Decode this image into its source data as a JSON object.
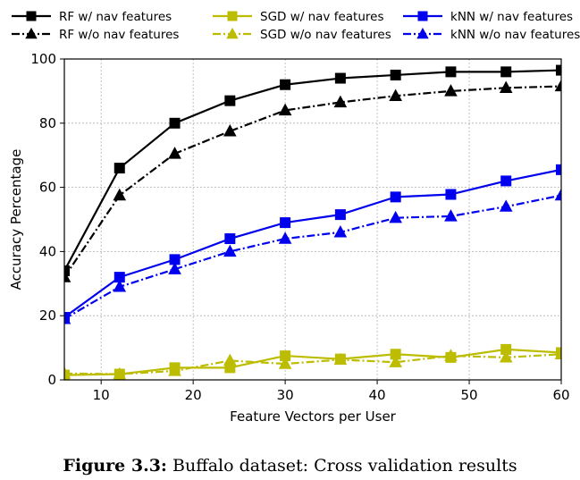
{
  "chart_data": {
    "type": "line",
    "xlabel": "Feature Vectors per User",
    "ylabel": "Accuracy Percentage",
    "xlim": [
      6,
      60
    ],
    "ylim": [
      0,
      100
    ],
    "xticks": [
      10,
      20,
      30,
      40,
      50,
      60
    ],
    "yticks": [
      0,
      20,
      40,
      60,
      80,
      100
    ],
    "grid": true,
    "legend_position": "top",
    "x": [
      6,
      12,
      18,
      24,
      30,
      36,
      42,
      48,
      54,
      60
    ],
    "series": [
      {
        "name": "RF w/ nav features",
        "color": "#000000",
        "marker": "square",
        "linestyle": "solid",
        "values": [
          34,
          66,
          80,
          87,
          92,
          94,
          95,
          96,
          96,
          96.5
        ]
      },
      {
        "name": "RF w/o nav features",
        "color": "#000000",
        "marker": "triangle",
        "linestyle": "dashdot",
        "values": [
          32,
          57.5,
          70.5,
          77.5,
          84,
          86.5,
          88.5,
          90,
          91,
          91.5
        ]
      },
      {
        "name": "SGD w/ nav features",
        "color": "#bcbc00",
        "marker": "square",
        "linestyle": "solid",
        "values": [
          1.5,
          1.8,
          3.8,
          3.8,
          7.5,
          6.5,
          8,
          7,
          9.5,
          8.5
        ]
      },
      {
        "name": "SGD w/o nav features",
        "color": "#bcbc00",
        "marker": "triangle",
        "linestyle": "dashdot",
        "values": [
          2,
          1.8,
          2.8,
          6,
          5,
          6.3,
          5.5,
          7.5,
          7,
          8
        ]
      },
      {
        "name": "kNN w/ nav features",
        "color": "#0000ee",
        "marker": "square",
        "linestyle": "solid",
        "values": [
          19.5,
          32,
          37.5,
          44,
          49,
          51.5,
          57,
          57.8,
          62,
          65.5
        ]
      },
      {
        "name": "kNN w/o nav features",
        "color": "#0000ee",
        "marker": "triangle",
        "linestyle": "dashdot",
        "values": [
          19,
          29,
          34.5,
          40,
          44,
          46,
          50.5,
          51,
          54,
          57.5
        ]
      }
    ]
  },
  "caption": {
    "label": "Figure 3.3:",
    "text": "Buffalo dataset: Cross validation results"
  }
}
